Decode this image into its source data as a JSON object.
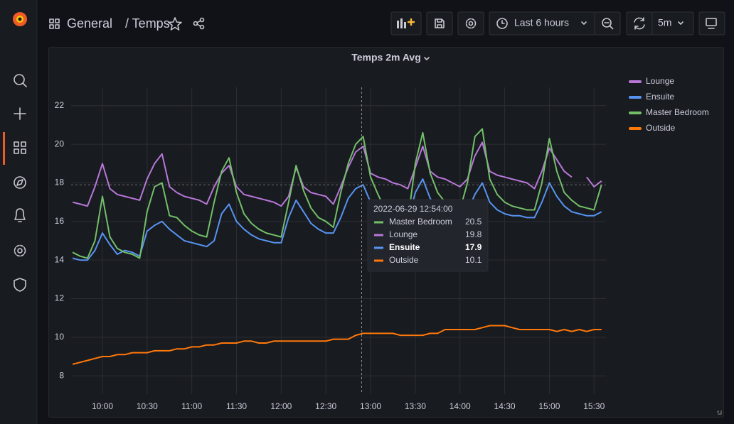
{
  "header": {
    "breadcrumb": [
      "General",
      "/ Temps"
    ]
  },
  "toolbar": {
    "time_range": "Last 6 hours",
    "refresh": "5m"
  },
  "chart_data": {
    "type": "line",
    "title": "Temps 2m Avg",
    "x": [
      "09:40",
      "09:45",
      "09:50",
      "09:55",
      "10:00",
      "10:05",
      "10:10",
      "10:15",
      "10:20",
      "10:25",
      "10:30",
      "10:35",
      "10:40",
      "10:45",
      "10:50",
      "10:55",
      "11:00",
      "11:05",
      "11:10",
      "11:15",
      "11:20",
      "11:25",
      "11:30",
      "11:35",
      "11:40",
      "11:45",
      "11:50",
      "11:55",
      "12:00",
      "12:05",
      "12:10",
      "12:15",
      "12:20",
      "12:25",
      "12:30",
      "12:35",
      "12:40",
      "12:45",
      "12:50",
      "12:55",
      "13:00",
      "13:05",
      "13:10",
      "13:15",
      "13:20",
      "13:25",
      "13:30",
      "13:35",
      "13:40",
      "13:45",
      "13:50",
      "13:55",
      "14:00",
      "14:05",
      "14:10",
      "14:15",
      "14:20",
      "14:25",
      "14:30",
      "14:35",
      "14:40",
      "14:45",
      "14:50",
      "14:55",
      "15:00",
      "15:05",
      "15:10",
      "15:15",
      "15:20",
      "15:25",
      "15:30",
      "15:35"
    ],
    "series": [
      {
        "name": "Lounge",
        "color": "#b877d9",
        "values": [
          17.0,
          16.9,
          16.8,
          17.8,
          19.0,
          17.7,
          17.4,
          17.3,
          17.2,
          17.1,
          18.2,
          19.0,
          19.5,
          17.8,
          17.5,
          17.3,
          17.2,
          17.1,
          16.9,
          17.8,
          18.5,
          18.9,
          17.8,
          17.4,
          17.3,
          17.2,
          17.1,
          17.0,
          16.8,
          17.3,
          18.8,
          17.8,
          17.5,
          17.4,
          17.3,
          16.9,
          17.8,
          18.8,
          19.6,
          19.9,
          18.5,
          18.3,
          18.2,
          18.0,
          17.9,
          17.7,
          18.8,
          19.9,
          18.6,
          18.3,
          18.2,
          18.0,
          17.8,
          18.2,
          19.4,
          20.1,
          18.6,
          18.4,
          18.3,
          18.2,
          18.1,
          18.0,
          17.7,
          18.6,
          19.8,
          19.2,
          18.6,
          18.3,
          null,
          18.3,
          17.8,
          18.1
        ]
      },
      {
        "name": "Ensuite",
        "color": "#5794f2",
        "values": [
          14.1,
          14.0,
          14.0,
          14.5,
          15.4,
          14.8,
          14.3,
          14.5,
          14.4,
          14.2,
          15.5,
          15.8,
          16.0,
          15.6,
          15.3,
          15.0,
          14.9,
          14.8,
          14.7,
          15.0,
          16.4,
          16.9,
          16.0,
          15.6,
          15.3,
          15.1,
          15.0,
          14.9,
          14.9,
          16.2,
          17.1,
          16.5,
          15.9,
          15.6,
          15.4,
          15.4,
          16.2,
          17.2,
          17.7,
          17.9,
          17.0,
          16.6,
          16.3,
          16.1,
          16.0,
          16.0,
          17.5,
          18.2,
          17.2,
          16.6,
          16.4,
          16.3,
          16.2,
          16.5,
          17.4,
          18.0,
          17.0,
          16.6,
          16.4,
          16.3,
          16.3,
          16.2,
          16.2,
          17.0,
          18.0,
          17.3,
          16.8,
          16.5,
          16.4,
          16.3,
          16.3,
          16.5
        ]
      },
      {
        "name": "Master Bedroom",
        "color": "#73bf69",
        "values": [
          14.4,
          14.2,
          14.1,
          15.0,
          17.3,
          15.2,
          14.6,
          14.4,
          14.3,
          14.1,
          16.5,
          17.8,
          18.0,
          16.3,
          16.2,
          15.8,
          15.5,
          15.3,
          15.2,
          17.0,
          18.6,
          19.3,
          17.5,
          16.4,
          15.9,
          15.6,
          15.4,
          15.3,
          15.2,
          17.0,
          18.9,
          17.6,
          16.7,
          16.2,
          16.0,
          15.7,
          17.5,
          19.0,
          20.0,
          20.4,
          18.3,
          17.4,
          16.6,
          16.3,
          16.1,
          16.0,
          19.0,
          20.6,
          18.5,
          17.5,
          17.0,
          16.8,
          16.6,
          18.0,
          20.4,
          20.8,
          18.2,
          17.4,
          17.0,
          16.8,
          16.7,
          16.6,
          16.6,
          18.0,
          20.3,
          18.6,
          17.5,
          17.1,
          16.8,
          16.7,
          16.6,
          17.9
        ]
      },
      {
        "name": "Outside",
        "color": "#ff780a",
        "values": [
          8.6,
          8.7,
          8.8,
          8.9,
          9.0,
          9.0,
          9.1,
          9.1,
          9.2,
          9.2,
          9.2,
          9.3,
          9.3,
          9.3,
          9.4,
          9.4,
          9.5,
          9.5,
          9.6,
          9.6,
          9.7,
          9.7,
          9.7,
          9.8,
          9.8,
          9.7,
          9.7,
          9.8,
          9.8,
          9.8,
          9.8,
          9.8,
          9.8,
          9.8,
          9.8,
          9.9,
          9.9,
          9.9,
          10.1,
          10.2,
          10.2,
          10.2,
          10.2,
          10.2,
          10.1,
          10.1,
          10.1,
          10.1,
          10.2,
          10.2,
          10.4,
          10.4,
          10.4,
          10.4,
          10.4,
          10.5,
          10.6,
          10.6,
          10.6,
          10.5,
          10.4,
          10.4,
          10.4,
          10.4,
          10.4,
          10.3,
          10.4,
          10.3,
          10.4,
          10.3,
          10.4,
          10.4
        ]
      }
    ],
    "xlim": [
      "09:39",
      "15:38"
    ],
    "xticks": [
      "10:00",
      "10:30",
      "11:00",
      "11:30",
      "12:00",
      "12:30",
      "13:00",
      "13:30",
      "14:00",
      "14:30",
      "15:00",
      "15:30"
    ],
    "ylim": [
      7.05,
      22.95
    ],
    "yticks": [
      8,
      10,
      12,
      14,
      16,
      18,
      20,
      22
    ],
    "grid": true,
    "legend": "right",
    "tooltip": {
      "title": "2022-06-29 12:54:00",
      "items": [
        {
          "name": "Master Bedroom",
          "value": 20.5,
          "color": "#73bf69"
        },
        {
          "name": "Lounge",
          "value": 19.8,
          "color": "#b877d9"
        },
        {
          "name": "Ensuite",
          "value": 17.9,
          "color": "#5794f2"
        },
        {
          "name": "Outside",
          "value": 10.1,
          "color": "#ff780a"
        }
      ]
    }
  }
}
